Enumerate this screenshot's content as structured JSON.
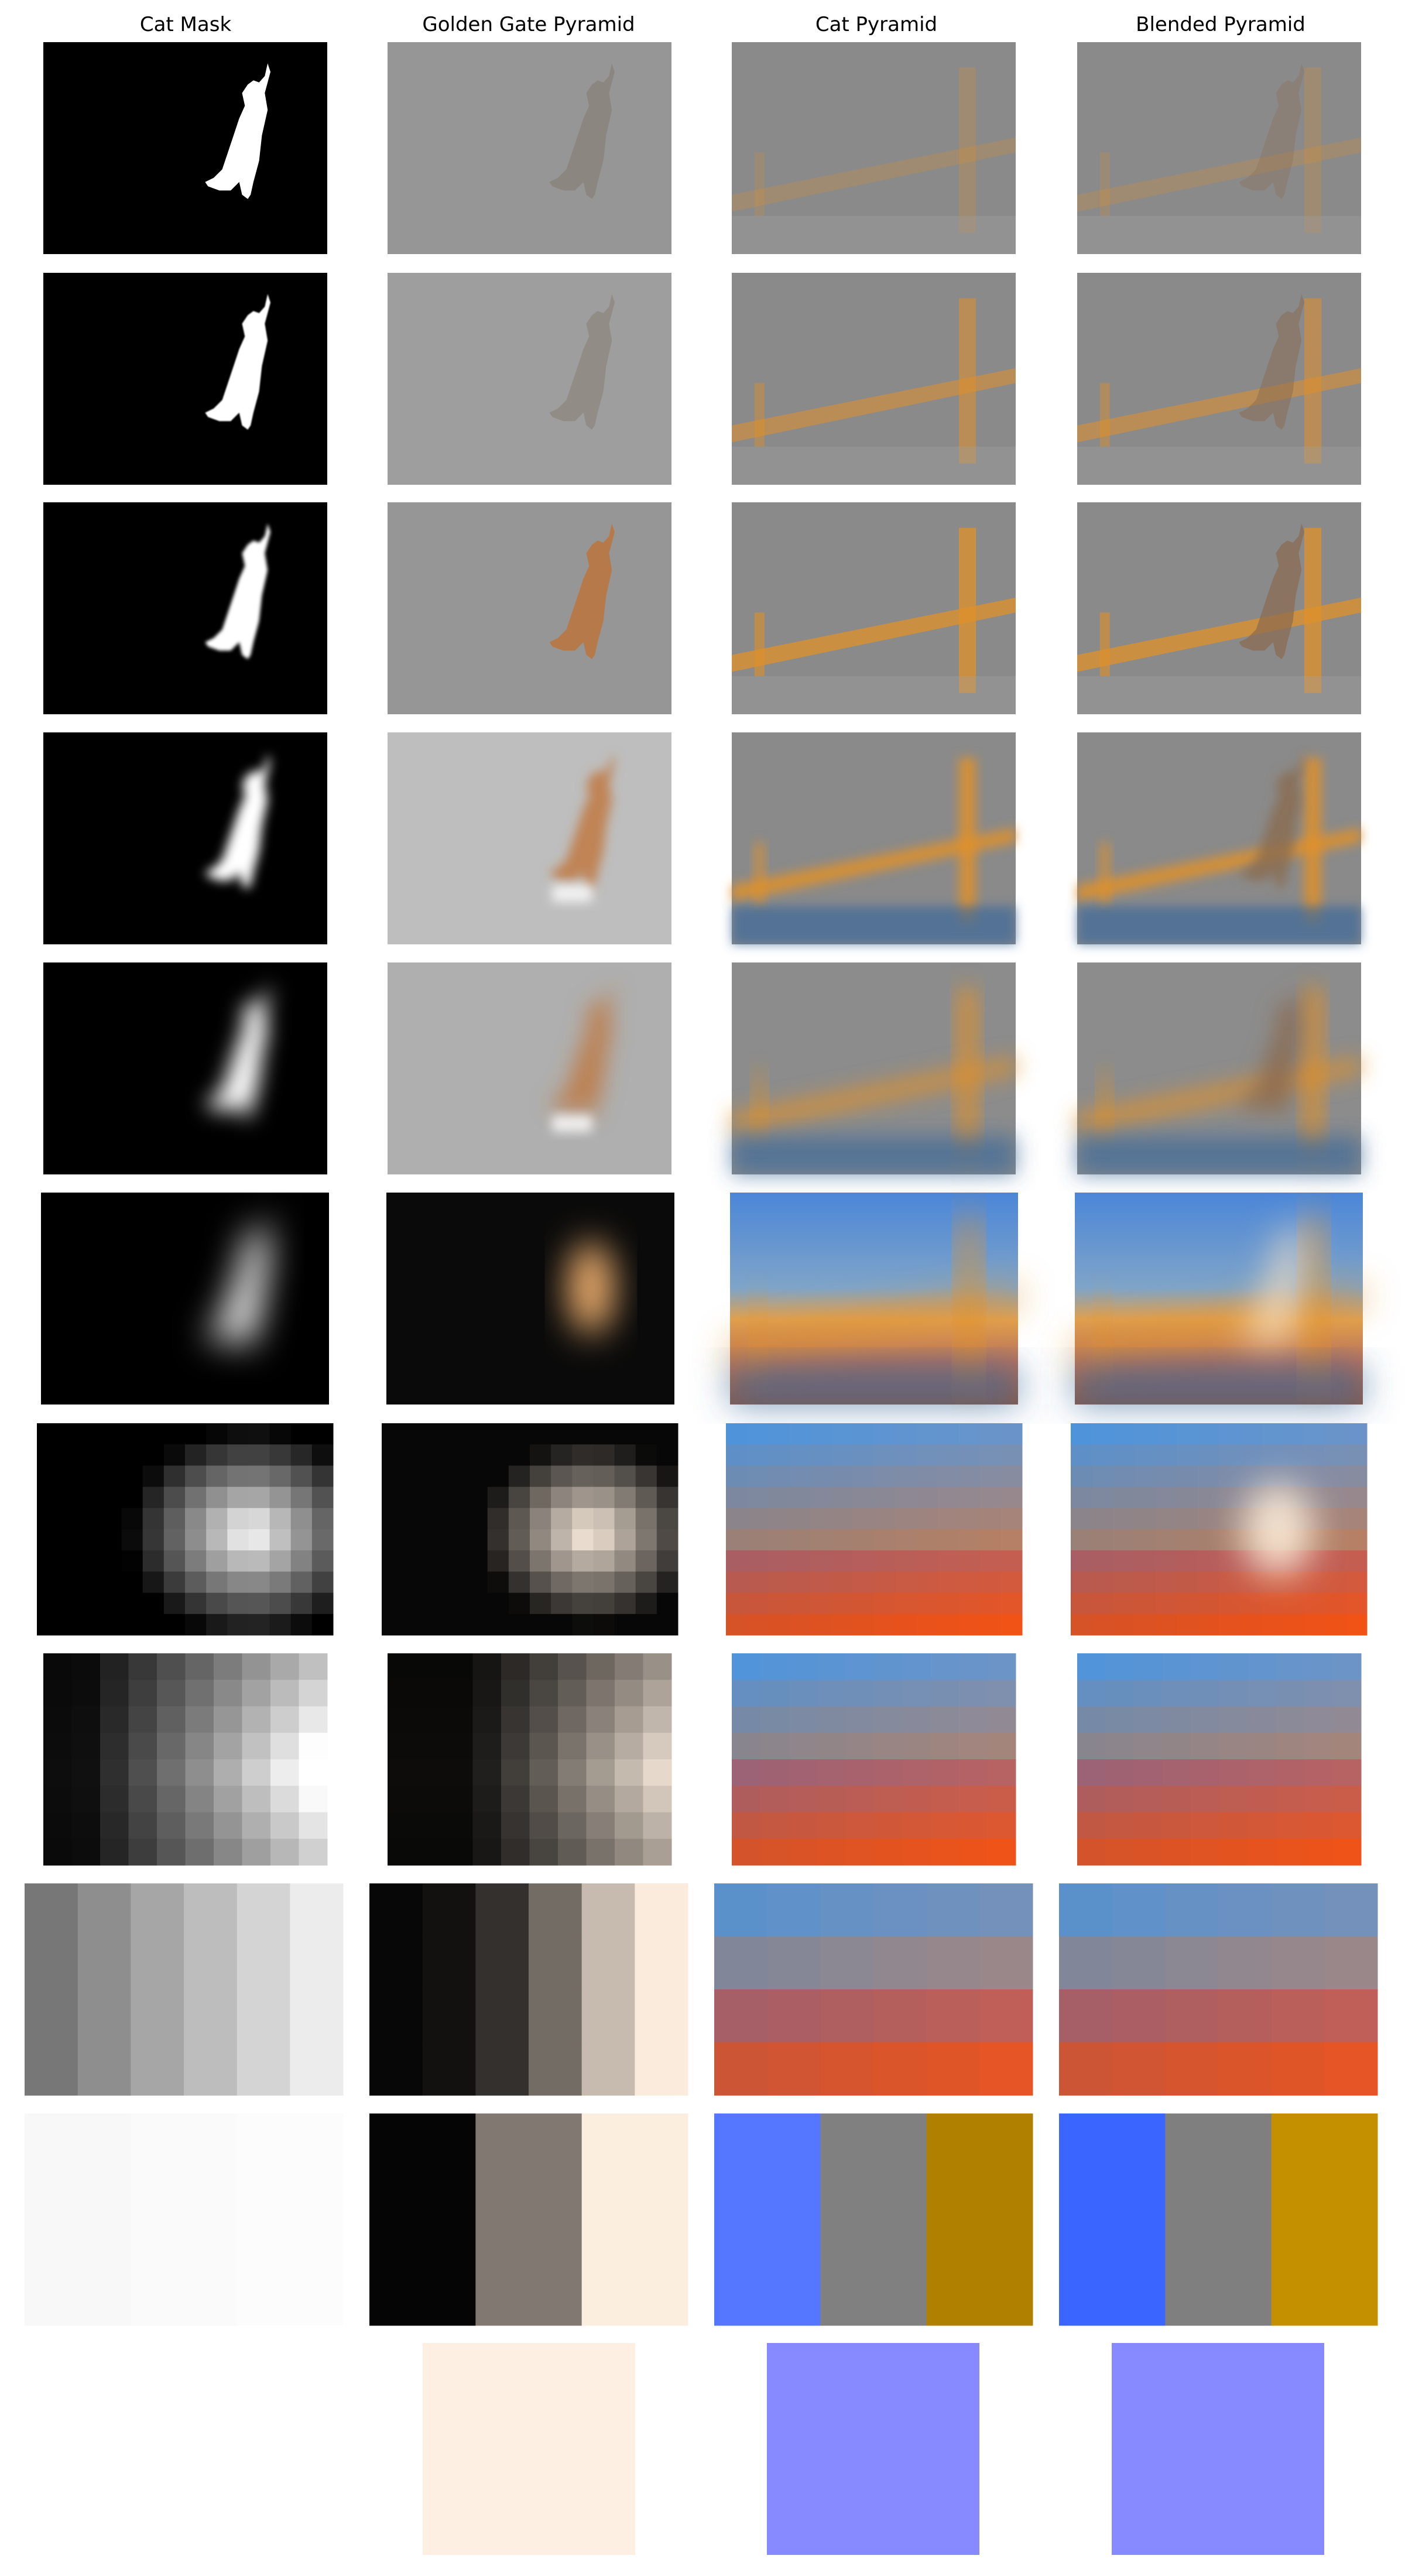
{
  "columns": [
    {
      "title": "Cat Mask"
    },
    {
      "title": "Golden Gate Pyramid"
    },
    {
      "title": "Cat Pyramid"
    },
    {
      "title": "Blended Pyramid"
    }
  ],
  "levels": [
    {
      "level": 0,
      "mask_blur": 0,
      "grid": 0
    },
    {
      "level": 1,
      "mask_blur": 1,
      "grid": 0
    },
    {
      "level": 2,
      "mask_blur": 3,
      "grid": 0
    },
    {
      "level": 3,
      "mask_blur": 9,
      "grid": 0
    },
    {
      "level": 4,
      "mask_blur": 18,
      "grid": 0
    },
    {
      "level": 5,
      "mask_blur": 30,
      "grid": 0
    },
    {
      "level": 6,
      "mask_blur": 0,
      "grid": [
        14,
        10
      ]
    },
    {
      "level": 7,
      "mask_blur": 0,
      "grid": [
        10,
        8
      ]
    },
    {
      "level": 8,
      "mask_blur": 0,
      "grid": [
        6,
        4
      ]
    },
    {
      "level": 9,
      "mask_blur": 0,
      "grid": [
        3,
        1
      ]
    },
    {
      "level": 10,
      "mask_blur": 0,
      "grid": [
        1,
        1
      ]
    }
  ],
  "colors": {
    "background": "#ffffff",
    "mask_fg": "#ffffff",
    "mask_bg": "#000000",
    "detail_gray": "#8c8c8c",
    "cat_orange": "#c07030",
    "bridge_orange": "#e0902a",
    "sky_blue": "#4a8ef0",
    "final_cream": "#fdf0e3",
    "final_violet": "#878aff"
  }
}
